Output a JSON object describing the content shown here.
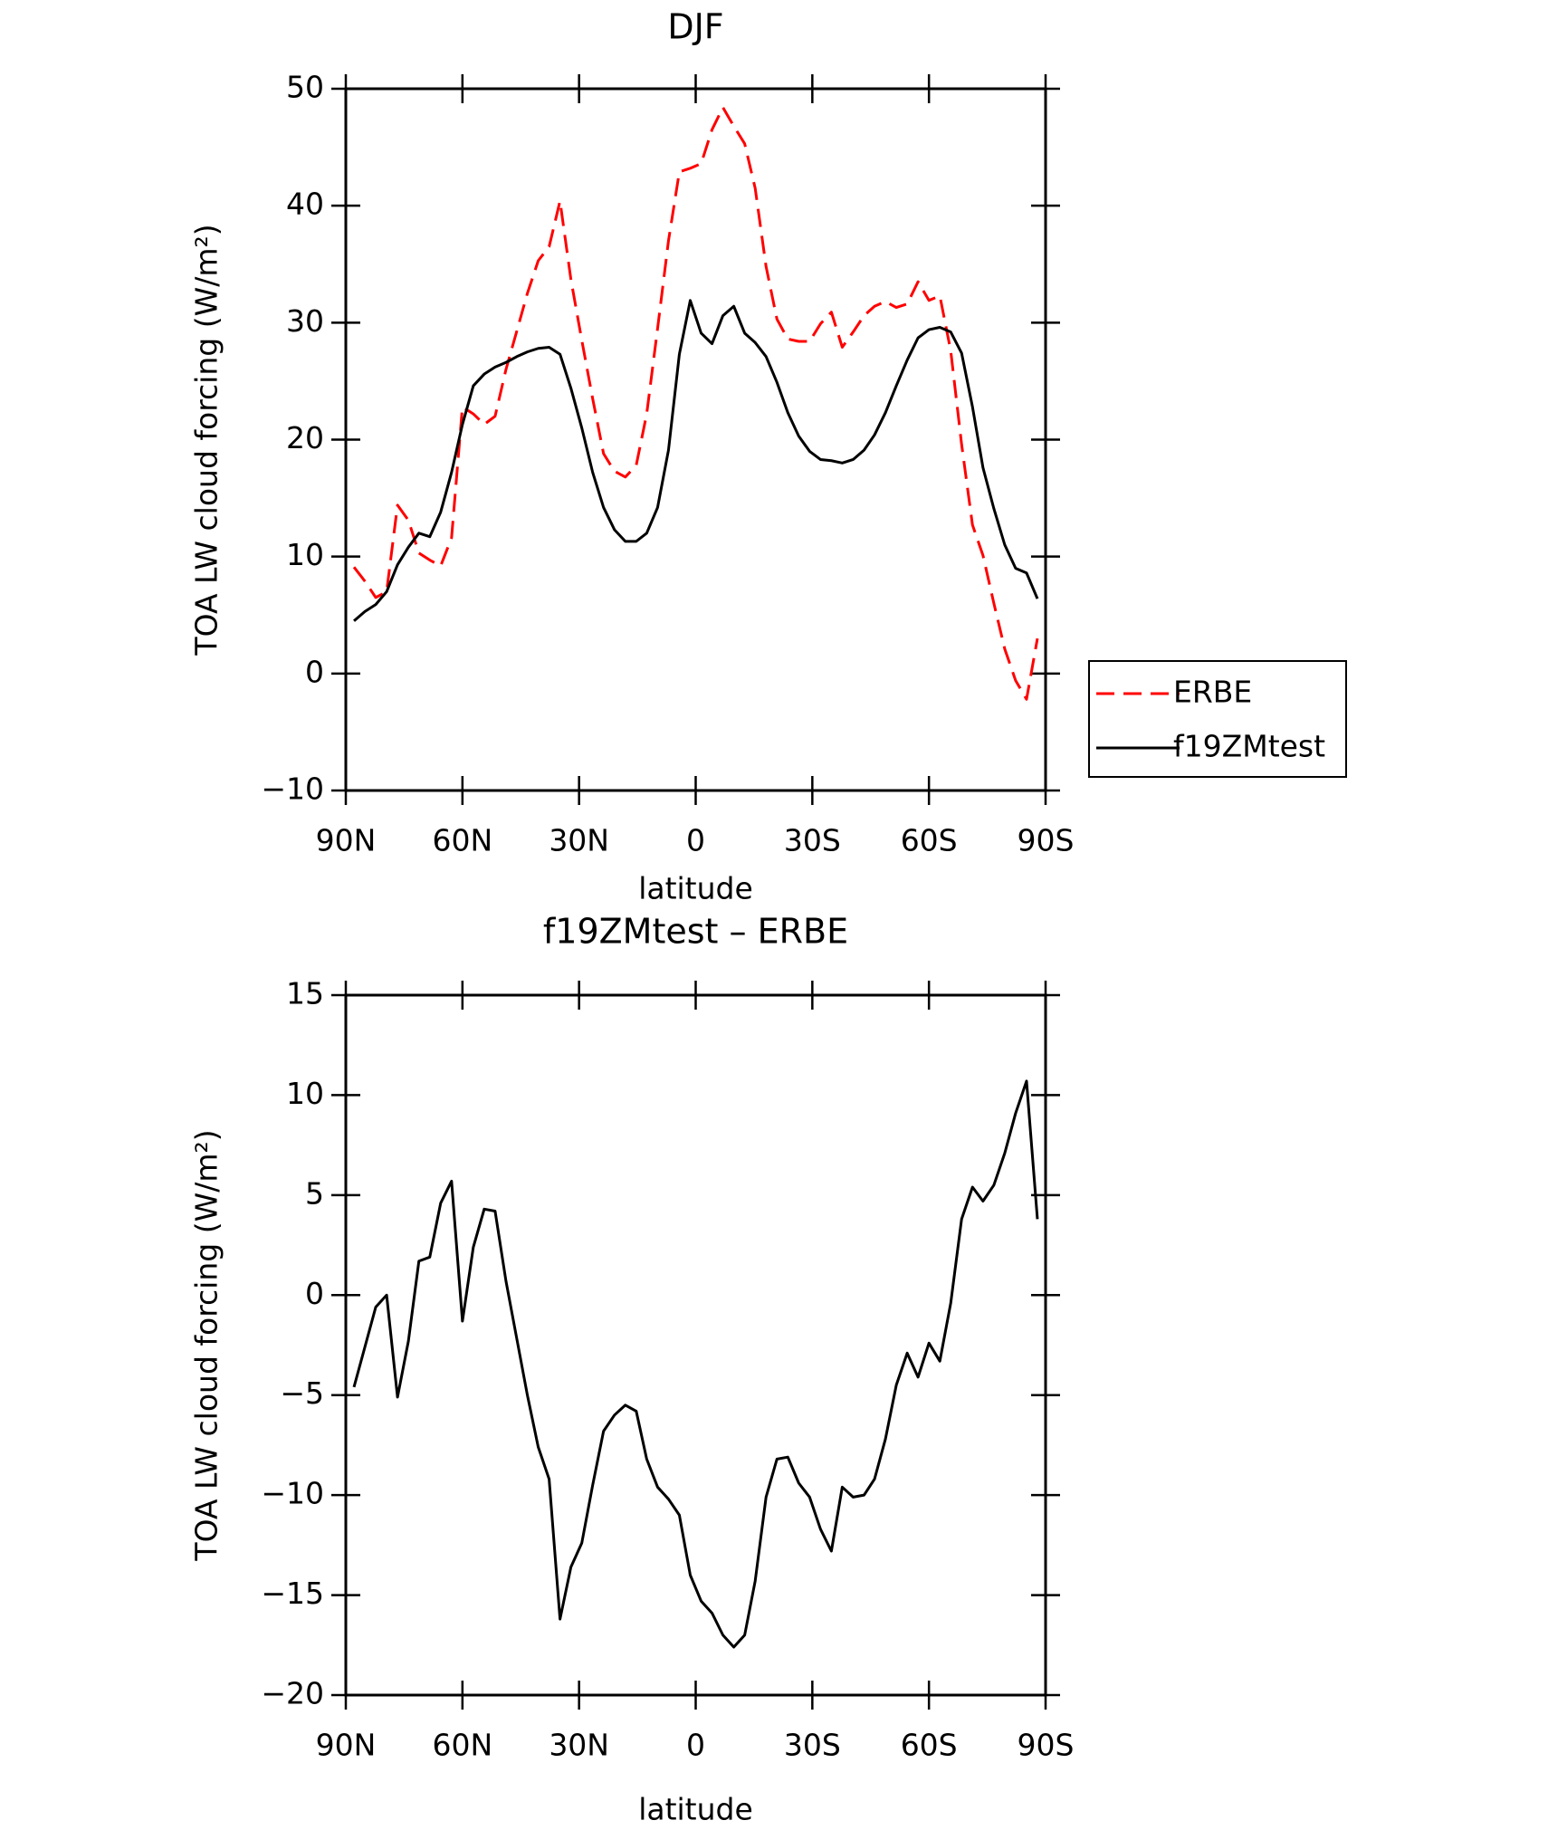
{
  "chart_data": [
    {
      "type": "line",
      "title": "DJF",
      "xlabel": "latitude",
      "ylabel": "TOA LW cloud forcing (W/m²)",
      "x": [
        87.9,
        85.1,
        82.3,
        79.5,
        76.7,
        73.9,
        71.2,
        68.4,
        65.6,
        62.8,
        60.0,
        57.2,
        54.4,
        51.6,
        48.8,
        46.0,
        43.3,
        40.5,
        37.7,
        34.9,
        32.1,
        29.3,
        26.5,
        23.7,
        20.9,
        18.1,
        15.3,
        12.6,
        9.8,
        7.0,
        4.2,
        1.4,
        -1.4,
        -4.2,
        -7.0,
        -9.8,
        -12.6,
        -15.3,
        -18.1,
        -20.9,
        -23.7,
        -26.5,
        -29.3,
        -32.1,
        -34.9,
        -37.7,
        -40.5,
        -43.3,
        -46.0,
        -48.8,
        -51.6,
        -54.4,
        -57.2,
        -60.0,
        -62.8,
        -65.6,
        -68.4,
        -71.2,
        -73.9,
        -76.7,
        -79.5,
        -82.3,
        -85.1,
        -87.9
      ],
      "series": [
        {
          "name": "ERBE",
          "color": "#ff0000",
          "style": "dashed",
          "values": [
            9.1,
            7.9,
            6.5,
            7.0,
            14.4,
            13.1,
            10.3,
            9.7,
            9.2,
            11.6,
            22.8,
            22.2,
            21.3,
            22.0,
            26.0,
            29.3,
            32.5,
            35.3,
            36.5,
            40.4,
            33.7,
            28.5,
            23.5,
            18.8,
            17.3,
            16.8,
            17.8,
            22.2,
            29.5,
            37.0,
            42.9,
            43.2,
            43.6,
            46.5,
            48.4,
            46.8,
            45.3,
            41.5,
            34.8,
            30.3,
            28.6,
            28.4,
            28.4,
            29.9,
            30.9,
            27.9,
            29.2,
            30.6,
            31.4,
            31.8,
            31.3,
            31.6,
            33.5,
            31.9,
            32.3,
            27.6,
            19.6,
            12.7,
            10.1,
            6.0,
            2.1,
            -0.6,
            -2.2,
            3.0
          ]
        },
        {
          "name": "f19ZMtest",
          "color": "#000000",
          "style": "solid",
          "values": [
            4.5,
            5.3,
            5.9,
            7.0,
            9.3,
            10.8,
            12.0,
            11.7,
            13.8,
            17.2,
            21.3,
            24.6,
            25.6,
            26.2,
            26.6,
            27.1,
            27.5,
            27.8,
            27.9,
            27.3,
            24.4,
            21.0,
            17.2,
            14.2,
            12.3,
            11.3,
            11.3,
            12.0,
            14.2,
            19.1,
            27.3,
            31.9,
            29.1,
            28.2,
            30.6,
            31.4,
            29.1,
            28.3,
            27.1,
            24.9,
            22.3,
            20.3,
            19.0,
            18.3,
            18.2,
            18.0,
            18.3,
            19.1,
            20.4,
            22.3,
            24.6,
            26.8,
            28.7,
            29.4,
            29.6,
            29.2,
            27.4,
            22.8,
            17.6,
            14.1,
            11.0,
            9.0,
            8.6,
            6.4
          ]
        }
      ],
      "xlim": [
        90,
        -90
      ],
      "xticks": [
        {
          "value": 90,
          "label": "90N"
        },
        {
          "value": 60,
          "label": "60N"
        },
        {
          "value": 30,
          "label": "30N"
        },
        0,
        {
          "value": -30,
          "label": "30S"
        },
        {
          "value": -60,
          "label": "60S"
        },
        {
          "value": -90,
          "label": "90S"
        }
      ],
      "ylim": [
        -10,
        50
      ],
      "yticks": [
        {
          "value": -10,
          "label": "−10"
        },
        0,
        10,
        20,
        30,
        40,
        50
      ],
      "legend": "right"
    },
    {
      "type": "line",
      "title": "f19ZMtest – ERBE",
      "xlabel": "latitude",
      "ylabel": "TOA LW cloud forcing (W/m²)",
      "x": [
        87.9,
        85.1,
        82.3,
        79.5,
        76.7,
        73.9,
        71.2,
        68.4,
        65.6,
        62.8,
        60.0,
        57.2,
        54.4,
        51.6,
        48.8,
        46.0,
        43.3,
        40.5,
        37.7,
        34.9,
        32.1,
        29.3,
        26.5,
        23.7,
        20.9,
        18.1,
        15.3,
        12.6,
        9.8,
        7.0,
        4.2,
        1.4,
        -1.4,
        -4.2,
        -7.0,
        -9.8,
        -12.6,
        -15.3,
        -18.1,
        -20.9,
        -23.7,
        -26.5,
        -29.3,
        -32.1,
        -34.9,
        -37.7,
        -40.5,
        -43.3,
        -46.0,
        -48.8,
        -51.6,
        -54.4,
        -57.2,
        -60.0,
        -62.8,
        -65.6,
        -68.4,
        -71.2,
        -73.9,
        -76.7,
        -79.5,
        -82.3,
        -85.1,
        -87.9
      ],
      "series": [
        {
          "color": "#000000",
          "style": "solid",
          "values": [
            -4.6,
            -2.6,
            -0.6,
            0.0,
            -5.1,
            -2.3,
            1.7,
            1.9,
            4.6,
            5.7,
            -1.3,
            2.4,
            4.3,
            4.2,
            0.7,
            -2.2,
            -5.0,
            -7.6,
            -9.2,
            -16.2,
            -13.6,
            -12.4,
            -9.5,
            -6.8,
            -6.0,
            -5.5,
            -5.8,
            -8.2,
            -9.6,
            -10.2,
            -11.0,
            -14.0,
            -15.3,
            -15.9,
            -17.0,
            -17.6,
            -17.0,
            -14.3,
            -10.1,
            -8.2,
            -8.1,
            -9.4,
            -10.1,
            -11.7,
            -12.8,
            -9.6,
            -10.1,
            -10.0,
            -9.2,
            -7.2,
            -4.5,
            -2.9,
            -4.1,
            -2.4,
            -3.3,
            -0.4,
            3.8,
            5.4,
            4.7,
            5.5,
            7.1,
            9.1,
            10.7,
            3.8
          ]
        }
      ],
      "xlim": [
        90,
        -90
      ],
      "xticks": [
        {
          "value": 90,
          "label": "90N"
        },
        {
          "value": 60,
          "label": "60N"
        },
        {
          "value": 30,
          "label": "30N"
        },
        0,
        {
          "value": -30,
          "label": "30S"
        },
        {
          "value": -60,
          "label": "60S"
        },
        {
          "value": -90,
          "label": "90S"
        }
      ],
      "ylim": [
        -20,
        15
      ],
      "yticks": [
        {
          "value": -20,
          "label": "−20"
        },
        {
          "value": -15,
          "label": "−15"
        },
        {
          "value": -10,
          "label": "−10"
        },
        {
          "value": -5,
          "label": "−5"
        },
        0,
        5,
        10,
        15
      ]
    }
  ]
}
